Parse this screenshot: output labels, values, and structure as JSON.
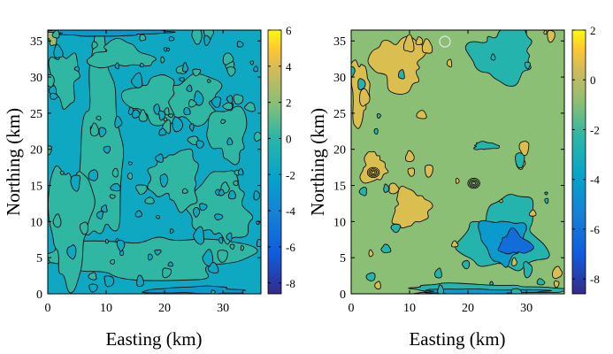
{
  "chart_data": [
    {
      "type": "heatmap",
      "xlabel": "Easting (km)",
      "ylabel": "Northing (km)",
      "xticks": [
        0,
        10,
        20,
        30
      ],
      "yticks": [
        0,
        5,
        10,
        15,
        20,
        25,
        30,
        35
      ],
      "xlim": [
        0,
        36.5
      ],
      "ylim": [
        0,
        36.5
      ],
      "colorbar": {
        "ticks": [
          6,
          4,
          2,
          0,
          -2,
          -4,
          -6,
          -8
        ],
        "range": [
          -8.6,
          6
        ]
      },
      "background_level": -1.6,
      "regions": [
        {
          "level": 0.2,
          "center": [
            9,
            20
          ],
          "extent": [
            3.5,
            13
          ]
        },
        {
          "level": 0.2,
          "center": [
            17,
            5
          ],
          "extent": [
            16,
            3
          ]
        },
        {
          "level": 0.2,
          "center": [
            4,
            10
          ],
          "extent": [
            3.5,
            8
          ]
        },
        {
          "level": 0.2,
          "center": [
            30,
            12
          ],
          "extent": [
            5,
            5
          ]
        },
        {
          "level": 0.2,
          "center": [
            22,
            16
          ],
          "extent": [
            4,
            4
          ]
        },
        {
          "level": 0.2,
          "center": [
            24,
            27
          ],
          "extent": [
            6,
            3
          ]
        },
        {
          "level": 0.2,
          "center": [
            18,
            27
          ],
          "extent": [
            4,
            3
          ]
        },
        {
          "level": 0.2,
          "center": [
            13,
            33
          ],
          "extent": [
            5,
            1.8
          ]
        },
        {
          "level": 0.2,
          "center": [
            3,
            30
          ],
          "extent": [
            2.5,
            3.5
          ]
        },
        {
          "level": 0.2,
          "center": [
            31,
            22
          ],
          "extent": [
            3,
            4
          ]
        },
        {
          "level": 2.5,
          "center": [
            0.7,
            35.8
          ],
          "extent": [
            0.9,
            1.2
          ]
        },
        {
          "level": -2.8,
          "center": [
            10,
            36.2
          ],
          "extent": [
            10,
            0.5
          ]
        },
        {
          "level": -2.8,
          "center": [
            26,
            0.5
          ],
          "extent": [
            8,
            0.5
          ]
        }
      ]
    },
    {
      "type": "heatmap",
      "xlabel": "Easting (km)",
      "ylabel": "Northing (km)",
      "xticks": [
        0,
        10,
        20,
        30
      ],
      "yticks": [
        0,
        5,
        10,
        15,
        20,
        25,
        30,
        35
      ],
      "xlim": [
        0,
        36.5
      ],
      "ylim": [
        0,
        36.5
      ],
      "colorbar": {
        "ticks": [
          2,
          0,
          -2,
          -4,
          -6,
          -8
        ],
        "range": [
          -8.6,
          2
        ]
      },
      "background_level": -0.9,
      "regions": [
        {
          "level": 0.6,
          "center": [
            8,
            32
          ],
          "extent": [
            4.5,
            3.5
          ]
        },
        {
          "level": 0.6,
          "center": [
            1.5,
            28
          ],
          "extent": [
            1.5,
            4
          ]
        },
        {
          "level": 0.6,
          "center": [
            3.8,
            17.5
          ],
          "extent": [
            2,
            2
          ]
        },
        {
          "level": 0.6,
          "center": [
            10,
            12
          ],
          "extent": [
            3,
            2.5
          ]
        },
        {
          "level": -2.6,
          "center": [
            26,
            33
          ],
          "extent": [
            5,
            3.5
          ]
        },
        {
          "level": -2.6,
          "center": [
            23,
            20.5
          ],
          "extent": [
            2,
            0.5
          ]
        },
        {
          "level": -2.6,
          "center": [
            26,
            8
          ],
          "extent": [
            7,
            5
          ]
        },
        {
          "level": -4.3,
          "center": [
            26,
            7.5
          ],
          "extent": [
            4,
            3
          ]
        },
        {
          "level": -6.3,
          "center": [
            28,
            7
          ],
          "extent": [
            2.5,
            1.6
          ]
        },
        {
          "level": -2.6,
          "center": [
            22,
            0.6
          ],
          "extent": [
            13,
            0.8
          ]
        },
        {
          "level": -4.3,
          "center": [
            22,
            0.3
          ],
          "extent": [
            10,
            0.4
          ]
        }
      ]
    }
  ]
}
